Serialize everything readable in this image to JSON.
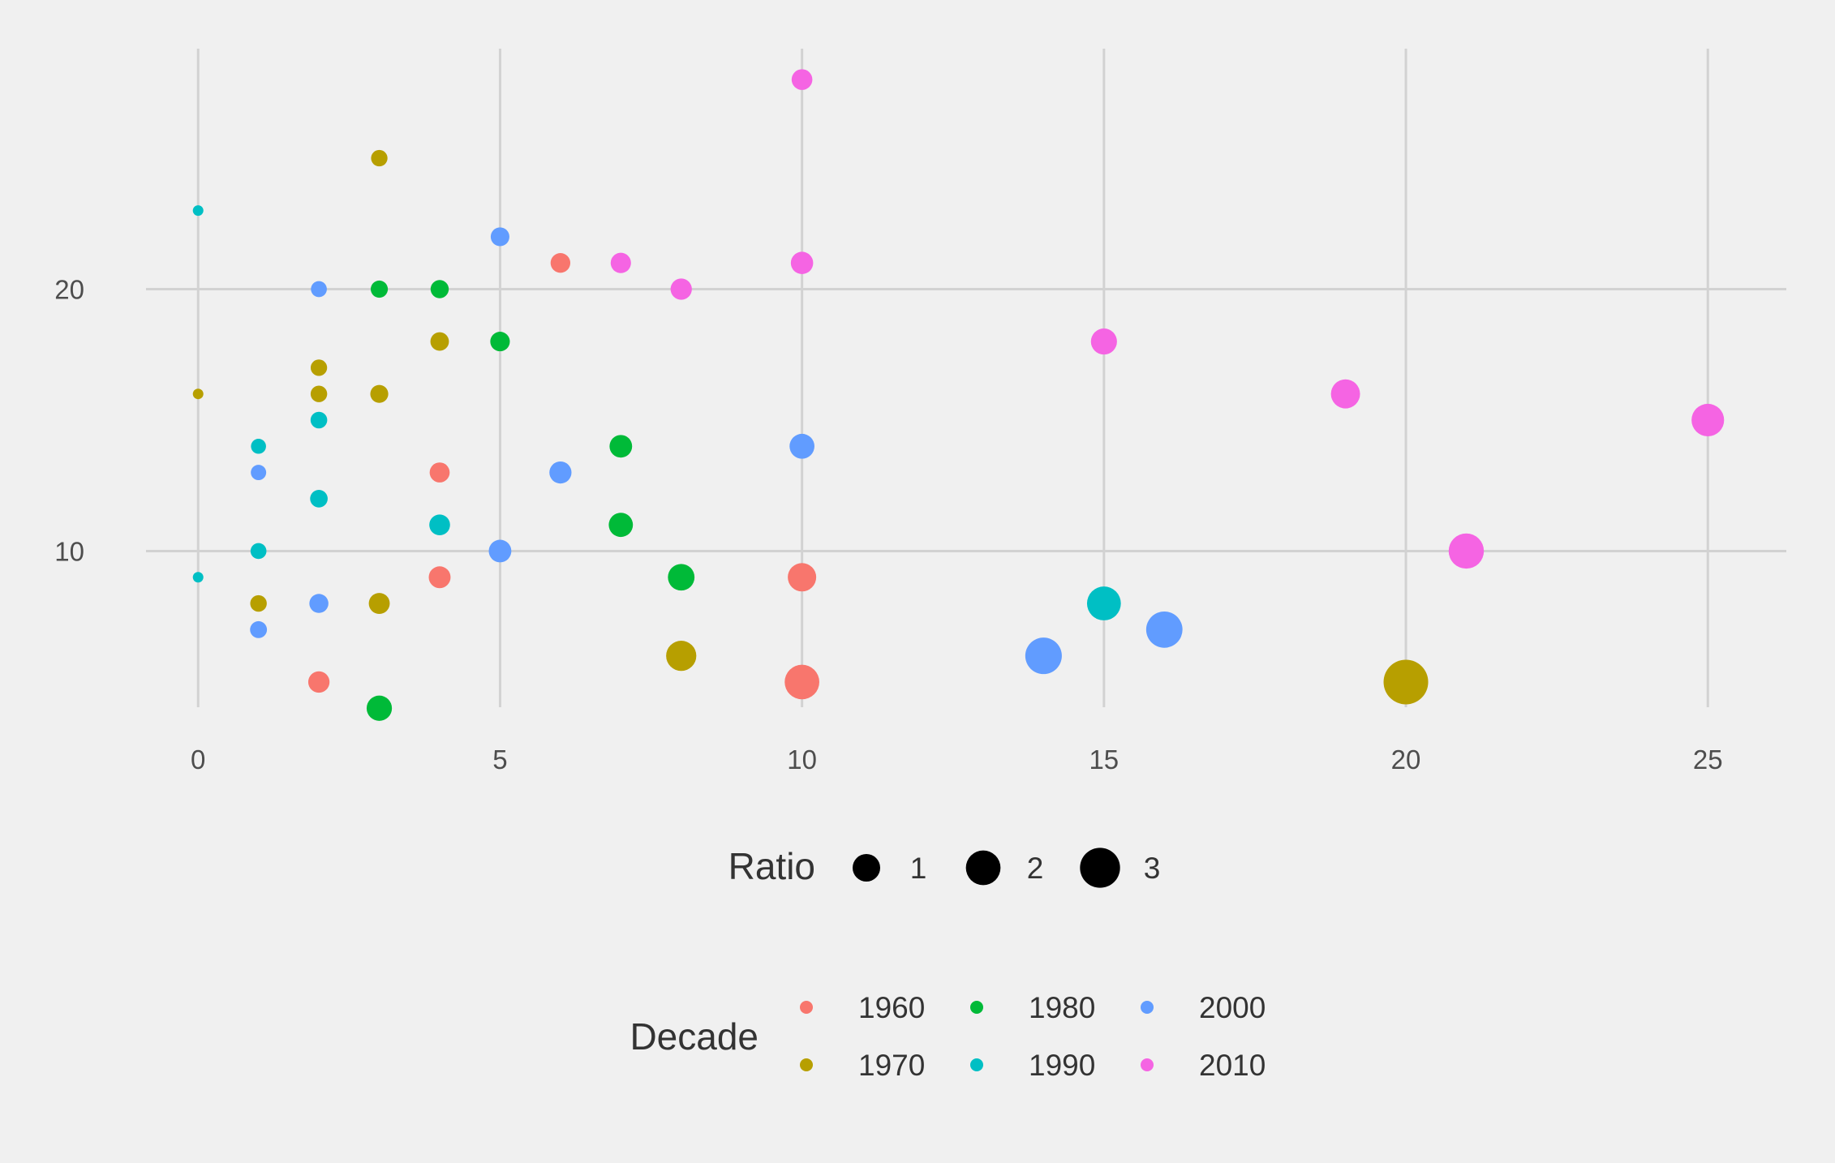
{
  "chart_data": {
    "type": "scatter",
    "title": "",
    "xlabel": "",
    "ylabel": "",
    "xlim": [
      -1.4,
      26.3
    ],
    "ylim": [
      2.8,
      29.8
    ],
    "x_ticks": [
      0,
      5,
      10,
      15,
      20,
      25
    ],
    "y_ticks": [
      10,
      20
    ],
    "grid": true,
    "legend_placement": "bottom",
    "size_legend": {
      "title": "Ratio",
      "entries": [
        {
          "label": "1",
          "value": 1
        },
        {
          "label": "2",
          "value": 2
        },
        {
          "label": "3",
          "value": 3
        }
      ]
    },
    "color_legend": {
      "title": "Decade",
      "entries": [
        {
          "label": "1960",
          "color": "#F8766D"
        },
        {
          "label": "1970",
          "color": "#B79F00"
        },
        {
          "label": "1980",
          "color": "#00BA38"
        },
        {
          "label": "1990",
          "color": "#00BFC4"
        },
        {
          "label": "2000",
          "color": "#619CFF"
        },
        {
          "label": "2010",
          "color": "#F564E3"
        }
      ]
    },
    "series": [
      {
        "name": "1960",
        "color": "#F8766D",
        "points": [
          {
            "x": 2,
            "y": 5,
            "ratio": 0.4
          },
          {
            "x": 4,
            "y": 9,
            "ratio": 0.44
          },
          {
            "x": 4,
            "y": 13,
            "ratio": 0.31
          },
          {
            "x": 6,
            "y": 21,
            "ratio": 0.29
          },
          {
            "x": 10,
            "y": 9,
            "ratio": 1.1
          },
          {
            "x": 10,
            "y": 5,
            "ratio": 2.0
          }
        ]
      },
      {
        "name": "1970",
        "color": "#B79F00",
        "points": [
          {
            "x": 0,
            "y": 16,
            "ratio": 0
          },
          {
            "x": 1,
            "y": 8,
            "ratio": 0.125
          },
          {
            "x": 2,
            "y": 16,
            "ratio": 0.125
          },
          {
            "x": 2,
            "y": 17,
            "ratio": 0.12
          },
          {
            "x": 3,
            "y": 8,
            "ratio": 0.375
          },
          {
            "x": 3,
            "y": 16,
            "ratio": 0.19
          },
          {
            "x": 3,
            "y": 25,
            "ratio": 0.12
          },
          {
            "x": 4,
            "y": 18,
            "ratio": 0.22
          },
          {
            "x": 8,
            "y": 6,
            "ratio": 1.33
          },
          {
            "x": 20,
            "y": 5,
            "ratio": 4.0
          }
        ]
      },
      {
        "name": "1980",
        "color": "#00BA38",
        "points": [
          {
            "x": 3,
            "y": 4,
            "ratio": 0.75
          },
          {
            "x": 3,
            "y": 20,
            "ratio": 0.15
          },
          {
            "x": 4,
            "y": 20,
            "ratio": 0.2
          },
          {
            "x": 5,
            "y": 18,
            "ratio": 0.28
          },
          {
            "x": 7,
            "y": 14,
            "ratio": 0.5
          },
          {
            "x": 7,
            "y": 11,
            "ratio": 0.64
          },
          {
            "x": 8,
            "y": 9,
            "ratio": 0.89
          }
        ]
      },
      {
        "name": "1990",
        "color": "#00BFC4",
        "points": [
          {
            "x": 0,
            "y": 23,
            "ratio": 0
          },
          {
            "x": 0,
            "y": 9,
            "ratio": 0
          },
          {
            "x": 1,
            "y": 14,
            "ratio": 0.07
          },
          {
            "x": 1,
            "y": 10,
            "ratio": 0.1
          },
          {
            "x": 2,
            "y": 15,
            "ratio": 0.13
          },
          {
            "x": 2,
            "y": 12,
            "ratio": 0.17
          },
          {
            "x": 4,
            "y": 11,
            "ratio": 0.36
          },
          {
            "x": 15,
            "y": 8,
            "ratio": 1.875
          }
        ]
      },
      {
        "name": "2000",
        "color": "#619CFF",
        "points": [
          {
            "x": 1,
            "y": 13,
            "ratio": 0.08
          },
          {
            "x": 1,
            "y": 7,
            "ratio": 0.14
          },
          {
            "x": 2,
            "y": 20,
            "ratio": 0.1
          },
          {
            "x": 2,
            "y": 8,
            "ratio": 0.25
          },
          {
            "x": 5,
            "y": 22,
            "ratio": 0.23
          },
          {
            "x": 5,
            "y": 10,
            "ratio": 0.5
          },
          {
            "x": 6,
            "y": 13,
            "ratio": 0.46
          },
          {
            "x": 10,
            "y": 14,
            "ratio": 0.71
          },
          {
            "x": 14,
            "y": 6,
            "ratio": 2.33
          },
          {
            "x": 16,
            "y": 7,
            "ratio": 2.29
          }
        ]
      },
      {
        "name": "2010",
        "color": "#F564E3",
        "points": [
          {
            "x": 7,
            "y": 21,
            "ratio": 0.33
          },
          {
            "x": 8,
            "y": 20,
            "ratio": 0.4
          },
          {
            "x": 10,
            "y": 21,
            "ratio": 0.48
          },
          {
            "x": 10,
            "y": 28,
            "ratio": 0.36
          },
          {
            "x": 15,
            "y": 18,
            "ratio": 0.83
          },
          {
            "x": 19,
            "y": 16,
            "ratio": 1.19
          },
          {
            "x": 21,
            "y": 10,
            "ratio": 2.1
          },
          {
            "x": 25,
            "y": 15,
            "ratio": 1.67
          }
        ]
      }
    ]
  }
}
